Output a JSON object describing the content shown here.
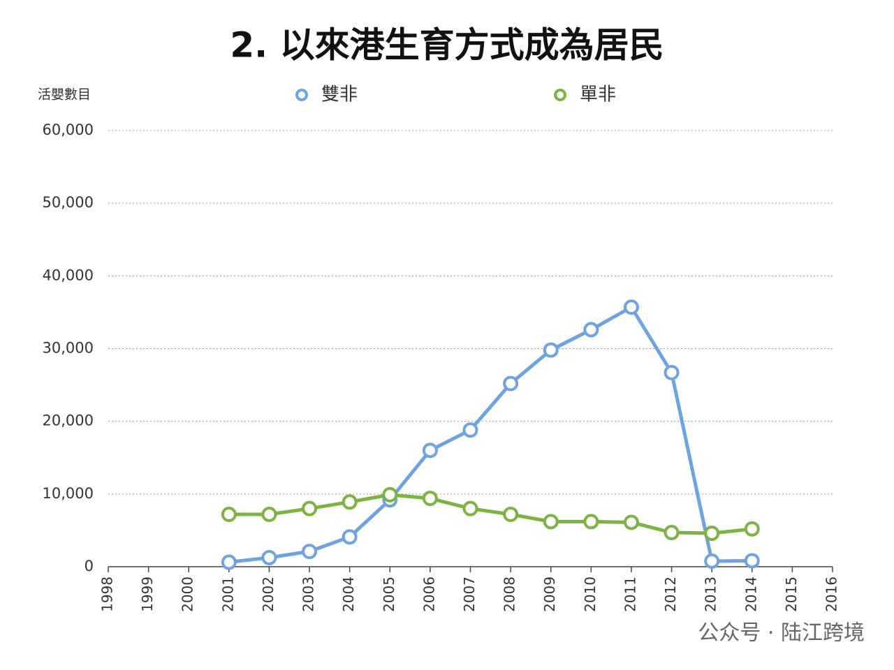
{
  "chart_data": {
    "type": "line",
    "title": "2. 以來港生育方式成為居民",
    "y_label": "活嬰數目",
    "watermark": "公众号 · 陆江跨境",
    "x": [
      2001,
      2002,
      2003,
      2004,
      2005,
      2006,
      2007,
      2008,
      2009,
      2010,
      2011,
      2012,
      2013,
      2014
    ],
    "series": [
      {
        "name": "雙非",
        "color": "#6fa3e0",
        "values": [
          620,
          1250,
          2100,
          4100,
          9200,
          16000,
          18800,
          25200,
          29800,
          32600,
          35700,
          26700,
          770,
          820
        ]
      },
      {
        "name": "單非",
        "color": "#7cb342",
        "values": [
          7200,
          7200,
          8000,
          8900,
          9900,
          9400,
          8000,
          7200,
          6200,
          6200,
          6100,
          4700,
          4600,
          5200
        ]
      }
    ],
    "xlim": [
      1998,
      2016
    ],
    "xticks": [
      1998,
      1999,
      2000,
      2001,
      2002,
      2003,
      2004,
      2005,
      2006,
      2007,
      2008,
      2009,
      2010,
      2011,
      2012,
      2013,
      2014,
      2015,
      2016
    ],
    "ylim": [
      0,
      60000
    ],
    "yticks": [
      0,
      {
        "value": 10000,
        "label": "10,000"
      },
      {
        "value": 20000,
        "label": "20,000"
      },
      {
        "value": 30000,
        "label": "30,000"
      },
      {
        "value": 40000,
        "label": "40,000"
      },
      {
        "value": 50000,
        "label": "50,000"
      },
      {
        "value": 60000,
        "label": "60,000"
      }
    ],
    "grid": true,
    "legend_position": "top"
  }
}
